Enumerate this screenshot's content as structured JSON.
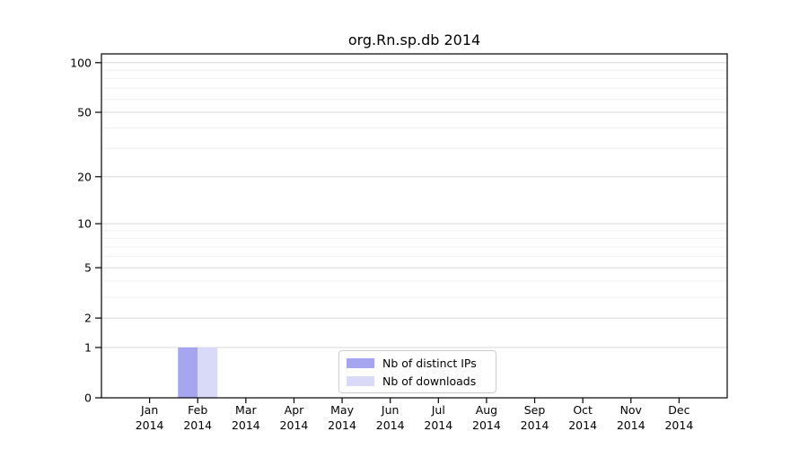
{
  "chart_data": {
    "type": "bar",
    "title": "org.Rn.sp.db 2014",
    "year_label": "2014",
    "categories": [
      "Jan",
      "Feb",
      "Mar",
      "Apr",
      "May",
      "Jun",
      "Jul",
      "Aug",
      "Sep",
      "Oct",
      "Nov",
      "Dec"
    ],
    "series": [
      {
        "name": "Nb of distinct IPs",
        "color": "#a6a6f0",
        "values": [
          0,
          1,
          0,
          0,
          0,
          0,
          0,
          0,
          0,
          0,
          0,
          0
        ]
      },
      {
        "name": "Nb of downloads",
        "color": "#d9d9f8",
        "values": [
          0,
          1,
          0,
          0,
          0,
          0,
          0,
          0,
          0,
          0,
          0,
          0
        ]
      }
    ],
    "yticks": [
      0,
      1,
      2,
      5,
      10,
      20,
      50,
      100
    ],
    "minor_yticks": [
      3,
      4,
      6,
      7,
      8,
      9,
      30,
      40,
      60,
      70,
      80,
      90
    ],
    "ylim": [
      0,
      113
    ],
    "scale": "log1p",
    "xlabel": "",
    "ylabel": "",
    "grid": "horizontal",
    "legend_position": "bottom-center",
    "colors": {
      "major_grid": "#d8d8d8",
      "minor_grid": "#f0f0f0",
      "spine": "#000000",
      "tick": "#000000",
      "legend_border": "#cccccc",
      "background": "#ffffff"
    }
  }
}
